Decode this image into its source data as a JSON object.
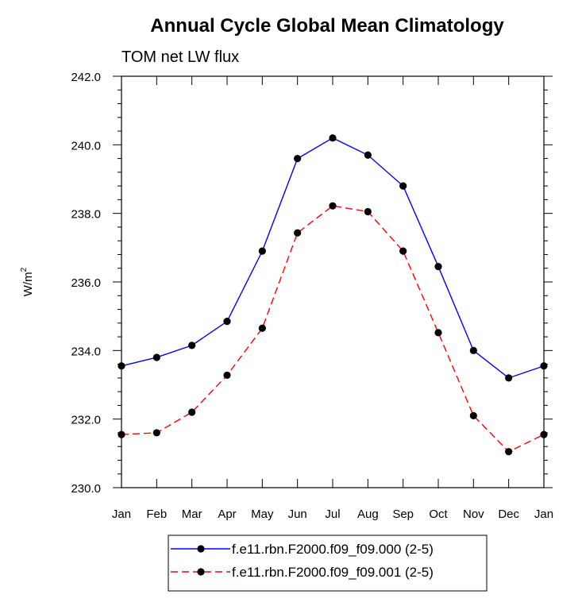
{
  "chart_data": {
    "type": "line",
    "title": "Annual Cycle Global Mean Climatology",
    "subtitle": "TOM net LW flux",
    "xlabel": "",
    "ylabel": "W/m",
    "ylabel_superscript": "2",
    "categories": [
      "Jan",
      "Feb",
      "Mar",
      "Apr",
      "May",
      "Jun",
      "Jul",
      "Aug",
      "Sep",
      "Oct",
      "Nov",
      "Dec",
      "Jan"
    ],
    "ylim": [
      230.0,
      242.0
    ],
    "yticks": [
      "230.0",
      "232.0",
      "234.0",
      "236.0",
      "238.0",
      "240.0",
      "242.0"
    ],
    "grid": false,
    "legend_position": "bottom",
    "series": [
      {
        "name": "f.e11.rbn.F2000.f09_f09.000 (2-5)",
        "color": "#0000ff",
        "dash": "solid",
        "marker": "filled-circle",
        "values": [
          233.55,
          233.8,
          234.15,
          234.85,
          236.9,
          239.6,
          240.2,
          239.7,
          238.8,
          236.45,
          234.0,
          233.2,
          233.55
        ]
      },
      {
        "name": "f.e11.rbn.F2000.f09_f09.001 (2-5)",
        "color": "#ff0000",
        "dash": "dashed",
        "marker": "filled-circle",
        "values": [
          231.55,
          231.6,
          232.2,
          233.28,
          234.65,
          237.43,
          238.22,
          238.05,
          236.9,
          234.52,
          232.1,
          231.05,
          231.55
        ]
      }
    ]
  }
}
